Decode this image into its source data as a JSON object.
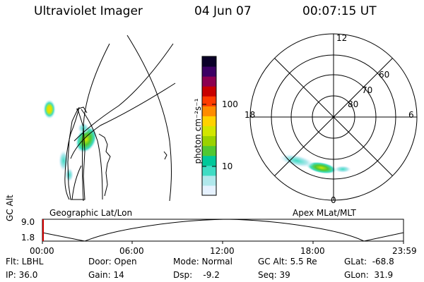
{
  "header": {
    "instrument": "Ultraviolet Imager",
    "date": "04 Jun 07",
    "time": "00:07:15 UT"
  },
  "colorbar": {
    "label": "photon cm⁻²s⁻¹",
    "ticks": [
      "100",
      "10"
    ],
    "colors": [
      "#e6f2ff",
      "#b0e8ec",
      "#3fdcc4",
      "#00c89a",
      "#50c832",
      "#9ad200",
      "#d2e600",
      "#ffd200",
      "#ff8c00",
      "#ff3c00",
      "#c80000",
      "#8c0050",
      "#3c0064",
      "#0a0028"
    ]
  },
  "geo_panel": {
    "label": "Geographic Lat/Lon"
  },
  "polar_panel": {
    "label": "Apex MLat/MLT",
    "mlt_labels": {
      "top": "12",
      "left": "18",
      "right": "6",
      "bottom": "0"
    },
    "lat_labels": [
      "60",
      "70",
      "80"
    ]
  },
  "timeline": {
    "axis_label": "GC Alt",
    "y_max": "9.0",
    "y_min": "1.8",
    "ticks": [
      "00:00",
      "06:00",
      "12:00",
      "18:00",
      "23:59"
    ]
  },
  "footer": {
    "flt": "Flt: LBHL",
    "ip": "IP: 36.0",
    "door": "Door: Open",
    "gain": "Gain: 14",
    "mode": "Mode: Normal",
    "dsp": "Dsp:    -9.2",
    "gc_alt": "GC Alt: 5.5 Re",
    "seq": "Seq: 39",
    "glat": "GLat:  -68.8",
    "glon": "GLon:  31.9"
  }
}
